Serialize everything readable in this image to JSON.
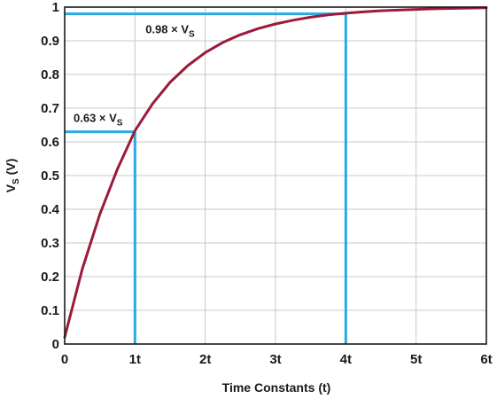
{
  "chart_data": {
    "type": "line",
    "title": "",
    "xlabel": "Time Constants (t)",
    "ylabel": {
      "main": "V",
      "sub": "S",
      "unit": " (V)"
    },
    "xlim": [
      0,
      6
    ],
    "ylim": [
      0,
      1
    ],
    "grid": true,
    "x_ticks": [
      {
        "value": 0,
        "label": "0"
      },
      {
        "value": 1,
        "label": "1t"
      },
      {
        "value": 2,
        "label": "2t"
      },
      {
        "value": 3,
        "label": "3t"
      },
      {
        "value": 4,
        "label": "4t"
      },
      {
        "value": 5,
        "label": "5t"
      },
      {
        "value": 6,
        "label": "6t"
      }
    ],
    "y_ticks": [
      {
        "value": 0,
        "label": "0"
      },
      {
        "value": 0.1,
        "label": "0.1"
      },
      {
        "value": 0.2,
        "label": "0.2"
      },
      {
        "value": 0.3,
        "label": "0.3"
      },
      {
        "value": 0.4,
        "label": "0.4"
      },
      {
        "value": 0.5,
        "label": "0.5"
      },
      {
        "value": 0.6,
        "label": "0.6"
      },
      {
        "value": 0.7,
        "label": "0.7"
      },
      {
        "value": 0.8,
        "label": "0.8"
      },
      {
        "value": 0.9,
        "label": "0.9"
      },
      {
        "value": 1,
        "label": "1"
      }
    ],
    "series": [
      {
        "color": "#9b1b3a",
        "x": [
          0,
          0.25,
          0.5,
          0.75,
          1,
          1.25,
          1.5,
          1.75,
          2,
          2.25,
          2.5,
          2.75,
          3,
          3.25,
          3.5,
          3.75,
          4,
          4.25,
          4.5,
          4.75,
          5,
          5.25,
          5.5,
          5.75,
          6
        ],
        "y": [
          0.02,
          0.222,
          0.385,
          0.519,
          0.633,
          0.713,
          0.777,
          0.826,
          0.865,
          0.895,
          0.918,
          0.936,
          0.95,
          0.961,
          0.97,
          0.977,
          0.982,
          0.986,
          0.989,
          0.991,
          0.993,
          0.995,
          0.996,
          0.997,
          0.998
        ]
      }
    ],
    "annotations": [
      {
        "x": 1,
        "y": 0.63,
        "color": "#29abe2",
        "label_main": "0.63 × V",
        "label_sub": "S"
      },
      {
        "x": 4,
        "y": 0.98,
        "color": "#29abe2",
        "label_main": "0.98 × V",
        "label_sub": "S"
      }
    ]
  }
}
